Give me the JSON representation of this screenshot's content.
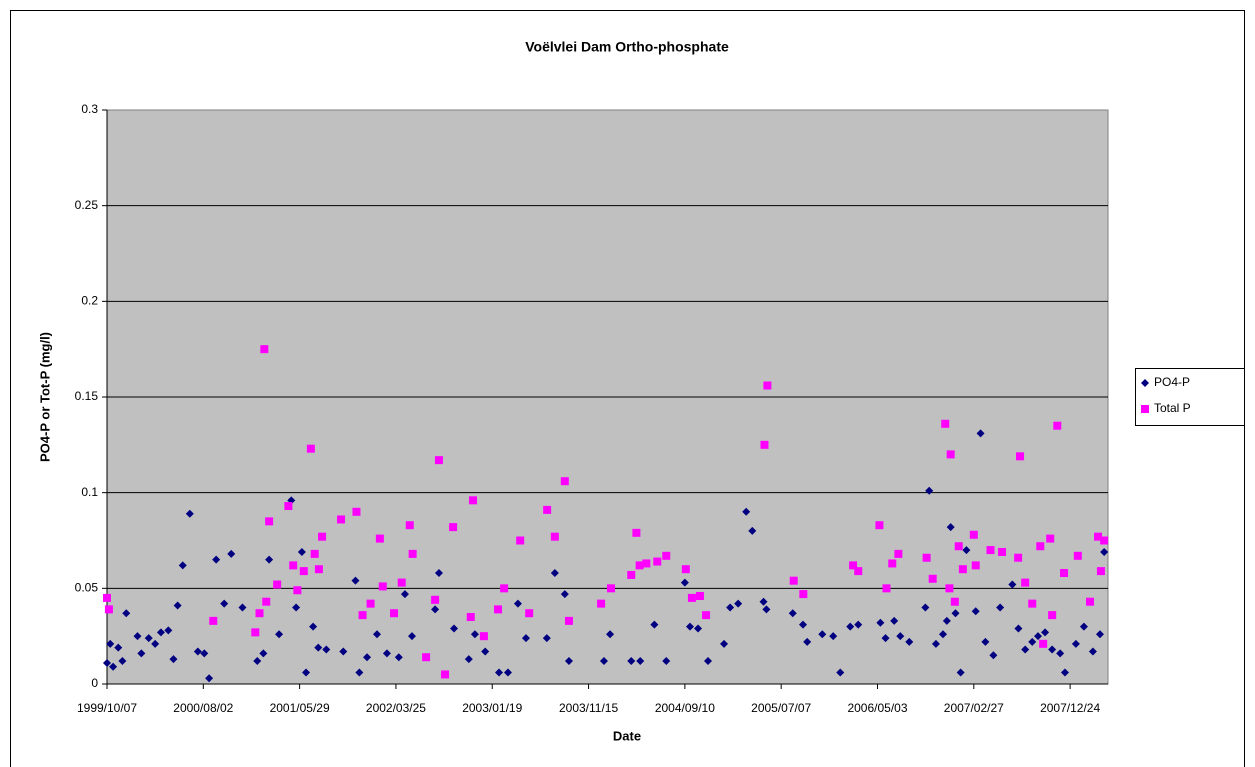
{
  "chart_data": {
    "type": "scatter",
    "title": "Voëlvlei Dam Ortho-phosphate",
    "x_label": "Date",
    "y_label": "PO4-P or Tot-P (mg/l)",
    "xlim": [
      "1999/10/07",
      "2008/04/20"
    ],
    "xticks": [
      "1999/10/07",
      "2000/08/02",
      "2001/05/29",
      "2002/03/25",
      "2003/01/19",
      "2003/11/15",
      "2004/09/10",
      "2005/07/07",
      "2006/05/03",
      "2007/02/27",
      "2007/12/24"
    ],
    "ylim": [
      0,
      0.3
    ],
    "yticks": [
      0,
      0.05,
      0.1,
      0.15,
      0.2,
      0.25,
      0.3
    ],
    "grid": true,
    "legend": "right",
    "series": [
      {
        "name": "PO4-P",
        "color": "#000080",
        "marker": "diamond",
        "x": [
          "1999/10/07",
          "1999/10/17",
          "1999/10/26",
          "1999/11/11",
          "1999/11/24",
          "1999/12/06",
          "2000/01/10",
          "2000/01/22",
          "2000/02/14",
          "2000/03/05",
          "2000/03/23",
          "2000/04/15",
          "2000/05/01",
          "2000/05/14",
          "2000/05/30",
          "2000/06/21",
          "2000/07/16",
          "2000/08/05",
          "2000/08/20",
          "2000/09/11",
          "2000/10/06",
          "2000/10/28",
          "2000/12/02",
          "2001/01/17",
          "2001/02/05",
          "2001/02/23",
          "2001/03/26",
          "2001/05/03",
          "2001/05/18",
          "2001/06/05",
          "2001/06/18",
          "2001/07/10",
          "2001/07/26",
          "2001/08/20",
          "2001/10/12",
          "2001/11/19",
          "2001/12/01",
          "2001/12/25",
          "2002/01/25",
          "2002/02/25",
          "2002/04/03",
          "2002/04/22",
          "2002/05/14",
          "2002/07/25",
          "2002/08/06",
          "2002/09/22",
          "2002/11/07",
          "2002/11/26",
          "2002/12/28",
          "2003/02/09",
          "2003/03/09",
          "2003/04/09",
          "2003/05/04",
          "2003/07/08",
          "2003/08/02",
          "2003/09/02",
          "2003/09/15",
          "2004/01/02",
          "2004/01/21",
          "2004/03/27",
          "2004/04/24",
          "2004/06/07",
          "2004/07/14",
          "2004/09/10",
          "2004/09/26",
          "2004/10/21",
          "2004/11/21",
          "2005/01/10",
          "2005/01/29",
          "2005/02/23",
          "2005/03/20",
          "2005/04/08",
          "2005/05/13",
          "2005/05/22",
          "2005/08/12",
          "2005/09/13",
          "2005/09/26",
          "2005/11/12",
          "2005/12/16",
          "2006/01/07",
          "2006/02/07",
          "2006/03/04",
          "2006/05/12",
          "2006/05/28",
          "2006/06/24",
          "2006/07/13",
          "2006/08/10",
          "2006/09/29",
          "2006/10/11",
          "2006/11/01",
          "2006/11/23",
          "2006/12/05",
          "2006/12/17",
          "2007/01/01",
          "2007/01/17",
          "2007/02/04",
          "2007/03/05",
          "2007/03/20",
          "2007/04/04",
          "2007/04/29",
          "2007/05/20",
          "2007/06/27",
          "2007/07/16",
          "2007/08/06",
          "2007/08/28",
          "2007/09/15",
          "2007/10/07",
          "2007/10/29",
          "2007/11/23",
          "2007/12/08",
          "2008/01/11",
          "2008/02/05",
          "2008/03/04",
          "2008/03/26",
          "2008/04/08"
        ],
        "values": [
          0.011,
          0.021,
          0.009,
          0.019,
          0.012,
          0.037,
          0.025,
          0.016,
          0.024,
          0.021,
          0.027,
          0.028,
          0.013,
          0.041,
          0.062,
          0.089,
          0.017,
          0.016,
          0.003,
          0.065,
          0.042,
          0.068,
          0.04,
          0.012,
          0.016,
          0.065,
          0.026,
          0.096,
          0.04,
          0.069,
          0.006,
          0.03,
          0.019,
          0.018,
          0.017,
          0.054,
          0.006,
          0.014,
          0.026,
          0.016,
          0.014,
          0.047,
          0.025,
          0.039,
          0.058,
          0.029,
          0.013,
          0.026,
          0.017,
          0.006,
          0.006,
          0.042,
          0.024,
          0.024,
          0.058,
          0.047,
          0.012,
          0.012,
          0.026,
          0.012,
          0.012,
          0.031,
          0.012,
          0.053,
          0.03,
          0.029,
          0.012,
          0.021,
          0.04,
          0.042,
          0.09,
          0.08,
          0.043,
          0.039,
          0.037,
          0.031,
          0.022,
          0.026,
          0.025,
          0.006,
          0.03,
          0.031,
          0.032,
          0.024,
          0.033,
          0.025,
          0.022,
          0.04,
          0.101,
          0.021,
          0.026,
          0.033,
          0.082,
          0.037,
          0.006,
          0.07,
          0.038,
          0.131,
          0.022,
          0.015,
          0.04,
          0.052,
          0.029,
          0.018,
          0.022,
          0.025,
          0.027,
          0.018,
          0.016,
          0.006,
          0.021,
          0.03,
          0.017,
          0.026,
          0.069
        ]
      },
      {
        "name": "Total P",
        "color": "#ff00ff",
        "marker": "square",
        "x": [
          "1999/10/07",
          "1999/10/13",
          "2000/09/02",
          "2001/01/11",
          "2001/01/24",
          "2001/02/08",
          "2001/02/14",
          "2001/02/23",
          "2001/03/20",
          "2001/04/24",
          "2001/05/09",
          "2001/05/22",
          "2001/06/11",
          "2001/07/03",
          "2001/07/15",
          "2001/07/28",
          "2001/08/07",
          "2001/10/05",
          "2001/11/22",
          "2001/12/11",
          "2002/01/05",
          "2002/02/03",
          "2002/02/12",
          "2002/03/19",
          "2002/04/12",
          "2002/05/07",
          "2002/05/16",
          "2002/06/27",
          "2002/07/25",
          "2002/08/06",
          "2002/08/25",
          "2002/09/19",
          "2002/11/13",
          "2002/11/20",
          "2002/12/24",
          "2003/02/06",
          "2003/02/25",
          "2003/04/16",
          "2003/05/14",
          "2003/07/09",
          "2003/08/02",
          "2003/09/02",
          "2003/09/15",
          "2003/12/24",
          "2004/01/24",
          "2004/03/27",
          "2004/04/12",
          "2004/04/22",
          "2004/05/13",
          "2004/06/16",
          "2004/07/14",
          "2004/09/13",
          "2004/10/02",
          "2004/10/27",
          "2004/11/15",
          "2005/05/16",
          "2005/05/25",
          "2005/08/15",
          "2005/09/14",
          "2006/02/16",
          "2006/03/04",
          "2006/05/09",
          "2006/05/31",
          "2006/06/18",
          "2006/07/07",
          "2006/10/03",
          "2006/10/22",
          "2006/11/30",
          "2006/12/13",
          "2006/12/17",
          "2006/12/30",
          "2007/01/11",
          "2007/01/24",
          "2007/02/27",
          "2007/03/05",
          "2007/04/20",
          "2007/05/26",
          "2007/07/15",
          "2007/07/21",
          "2007/08/06",
          "2007/08/28",
          "2007/09/22",
          "2007/10/01",
          "2007/10/23",
          "2007/10/29",
          "2007/11/14",
          "2007/12/05",
          "2008/01/17",
          "2008/02/24",
          "2008/03/20",
          "2008/03/29",
          "2008/04/08"
        ],
        "values": [
          0.045,
          0.039,
          0.033,
          0.027,
          0.037,
          0.175,
          0.043,
          0.085,
          0.052,
          0.093,
          0.062,
          0.049,
          0.059,
          0.123,
          0.068,
          0.06,
          0.077,
          0.086,
          0.09,
          0.036,
          0.042,
          0.076,
          0.051,
          0.037,
          0.053,
          0.083,
          0.068,
          0.014,
          0.044,
          0.117,
          0.005,
          0.082,
          0.035,
          0.096,
          0.025,
          0.039,
          0.05,
          0.075,
          0.037,
          0.091,
          0.077,
          0.106,
          0.033,
          0.042,
          0.05,
          0.057,
          0.079,
          0.062,
          0.063,
          0.064,
          0.067,
          0.06,
          0.045,
          0.046,
          0.036,
          0.125,
          0.156,
          0.054,
          0.047,
          0.062,
          0.059,
          0.083,
          0.05,
          0.063,
          0.068,
          0.066,
          0.055,
          0.136,
          0.05,
          0.12,
          0.043,
          0.072,
          0.06,
          0.078,
          0.062,
          0.07,
          0.069,
          0.066,
          0.119,
          0.053,
          0.042,
          0.072,
          0.021,
          0.076,
          0.036,
          0.135,
          0.058,
          0.067,
          0.043,
          0.077,
          0.059,
          0.075
        ]
      }
    ]
  }
}
